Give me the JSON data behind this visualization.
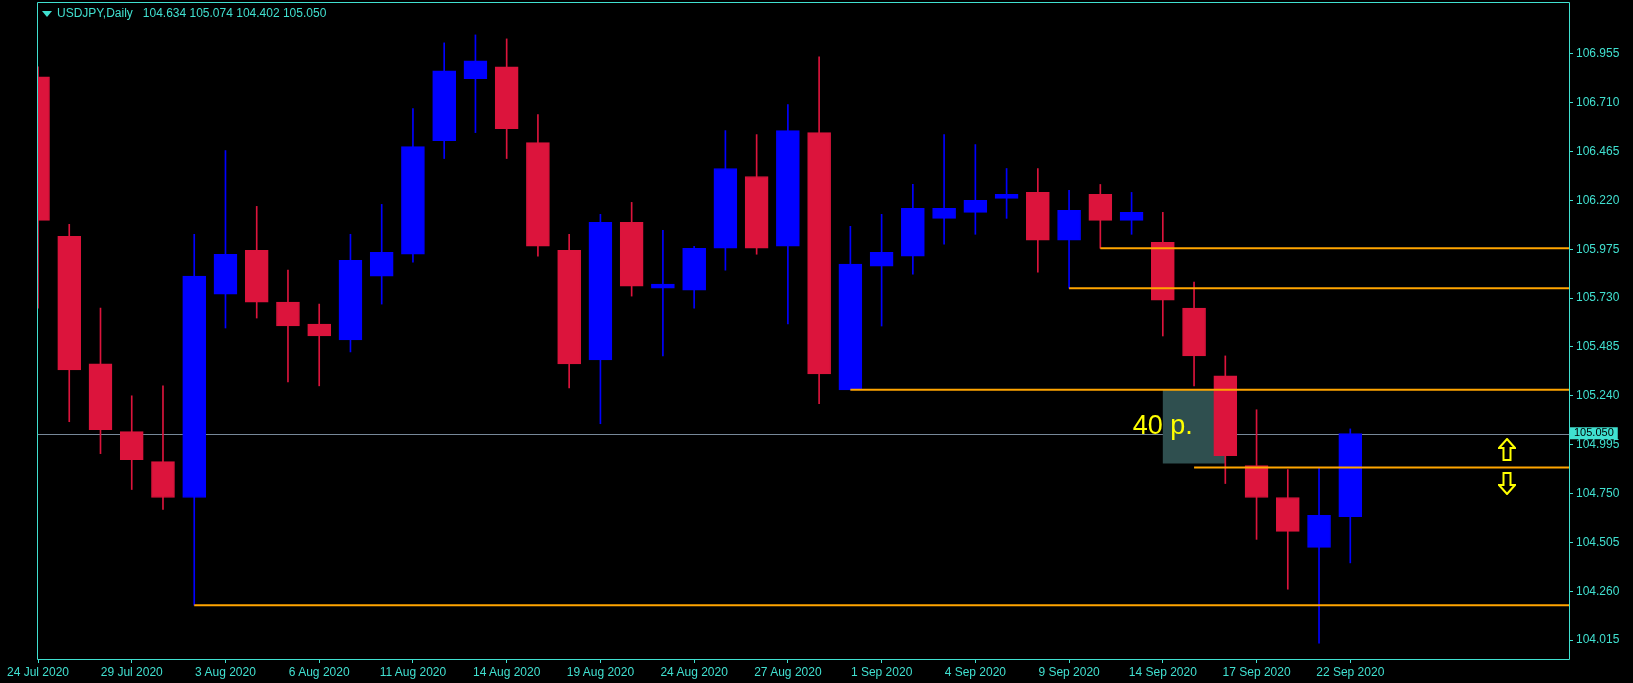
{
  "chart_data": {
    "type": "candlestick",
    "title": "USDJPY,Daily",
    "subtitle": "104.634 105.074 104.402 105.050",
    "categories": [
      "24 Jul 2020",
      null,
      null,
      "29 Jul 2020",
      null,
      null,
      "3 Aug 2020",
      null,
      null,
      "6 Aug 2020",
      null,
      null,
      "11 Aug 2020",
      null,
      null,
      "14 Aug 2020",
      null,
      null,
      "19 Aug 2020",
      null,
      null,
      "24 Aug 2020",
      null,
      null,
      "27 Aug 2020",
      null,
      null,
      "1 Sep 2020",
      null,
      null,
      "4 Sep 2020",
      null,
      null,
      "9 Sep 2020",
      null,
      null,
      "14 Sep 2020",
      null,
      null,
      "17 Sep 2020",
      null,
      null,
      "22 Sep 2020",
      null,
      null,
      null,
      null,
      null,
      null,
      null
    ],
    "series": [
      {
        "ohlc": [
          [
            106.84,
            106.89,
            105.68,
            106.12
          ],
          [
            106.04,
            106.1,
            105.11,
            105.37
          ],
          [
            105.4,
            105.68,
            104.95,
            105.07
          ],
          [
            105.06,
            105.24,
            104.77,
            104.92
          ],
          [
            104.91,
            105.29,
            104.67,
            104.73
          ],
          [
            104.73,
            106.05,
            104.19,
            105.84
          ],
          [
            105.75,
            106.47,
            105.58,
            105.95
          ],
          [
            105.97,
            106.19,
            105.63,
            105.71
          ],
          [
            105.71,
            105.87,
            105.31,
            105.59
          ],
          [
            105.6,
            105.7,
            105.29,
            105.54
          ],
          [
            105.52,
            106.05,
            105.46,
            105.92
          ],
          [
            105.84,
            106.2,
            105.7,
            105.96
          ],
          [
            105.95,
            106.68,
            105.91,
            106.49
          ],
          [
            106.52,
            107.01,
            106.43,
            106.87
          ],
          [
            106.83,
            107.05,
            106.56,
            106.92
          ],
          [
            106.89,
            107.03,
            106.43,
            106.58
          ],
          [
            106.51,
            106.65,
            105.94,
            105.99
          ],
          [
            105.97,
            106.05,
            105.28,
            105.4
          ],
          [
            105.42,
            106.15,
            105.1,
            106.11
          ],
          [
            106.11,
            106.21,
            105.74,
            105.79
          ],
          [
            105.78,
            106.07,
            105.44,
            105.8
          ],
          [
            105.77,
            105.99,
            105.68,
            105.98
          ],
          [
            105.98,
            106.57,
            105.87,
            106.38
          ],
          [
            106.34,
            106.55,
            105.95,
            105.98
          ],
          [
            105.99,
            106.7,
            105.6,
            106.57
          ],
          [
            106.56,
            106.94,
            105.2,
            105.35
          ],
          [
            105.27,
            106.09,
            105.27,
            105.9
          ],
          [
            105.89,
            106.15,
            105.59,
            105.96
          ],
          [
            105.94,
            106.3,
            105.85,
            106.18
          ],
          [
            106.13,
            106.55,
            106.0,
            106.18
          ],
          [
            106.16,
            106.5,
            106.05,
            106.22
          ],
          [
            106.23,
            106.38,
            106.13,
            106.25
          ],
          [
            106.26,
            106.38,
            105.86,
            106.02
          ],
          [
            106.02,
            106.27,
            105.78,
            106.17
          ],
          [
            106.25,
            106.3,
            105.98,
            106.12
          ],
          [
            106.12,
            106.26,
            106.05,
            106.16
          ],
          [
            106.01,
            106.16,
            105.54,
            105.72
          ],
          [
            105.68,
            105.81,
            105.29,
            105.44
          ],
          [
            105.34,
            105.44,
            104.8,
            104.94
          ],
          [
            104.89,
            105.17,
            104.52,
            104.73
          ],
          [
            104.73,
            104.87,
            104.27,
            104.56
          ],
          [
            104.48,
            104.88,
            104.0,
            104.64
          ],
          [
            104.634,
            105.074,
            104.402,
            105.05
          ],
          null,
          null,
          null,
          null,
          null,
          null,
          null
        ],
        "colors": [
          "#dc143c",
          "#dc143c",
          "#dc143c",
          "#dc143c",
          "#dc143c",
          "#0000ff",
          "#0000ff",
          "#dc143c",
          "#dc143c",
          "#dc143c",
          "#0000ff",
          "#0000ff",
          "#0000ff",
          "#0000ff",
          "#0000ff",
          "#dc143c",
          "#dc143c",
          "#dc143c",
          "#0000ff",
          "#dc143c",
          "#0000ff",
          "#0000ff",
          "#0000ff",
          "#dc143c",
          "#0000ff",
          "#dc143c",
          "#0000ff",
          "#0000ff",
          "#0000ff",
          "#0000ff",
          "#0000ff",
          "#0000ff",
          "#dc143c",
          "#0000ff",
          "#dc143c",
          "#0000ff",
          "#dc143c",
          "#dc143c",
          "#dc143c",
          "#dc143c",
          "#dc143c",
          "#0000ff",
          "#0000ff",
          null,
          null,
          null,
          null,
          null,
          null,
          null
        ]
      },
      {
        "type": "line",
        "color": "#ffa500",
        "values": [
          null,
          null,
          null,
          null,
          null,
          104.19,
          104.19,
          104.19,
          104.19,
          104.19,
          104.19,
          104.19,
          104.19,
          104.19,
          104.19,
          104.19,
          104.19,
          104.19,
          104.19,
          104.19,
          104.19,
          104.19,
          104.19,
          104.19,
          104.19,
          104.19,
          104.19,
          104.19,
          104.19,
          104.19,
          104.19,
          104.19,
          104.19,
          104.19,
          104.19,
          104.19,
          104.19,
          104.19,
          104.19,
          104.19,
          104.19,
          104.19,
          104.19,
          104.19,
          104.19,
          104.19,
          104.19,
          104.19,
          104.19,
          104.19
        ]
      },
      {
        "type": "line",
        "color": "#ffa500",
        "values": [
          null,
          null,
          null,
          null,
          null,
          null,
          null,
          null,
          null,
          null,
          null,
          null,
          null,
          null,
          null,
          null,
          null,
          null,
          null,
          null,
          null,
          null,
          null,
          null,
          null,
          null,
          105.27,
          105.27,
          105.27,
          105.27,
          105.27,
          105.27,
          105.27,
          105.27,
          105.27,
          105.27,
          105.27,
          105.27,
          105.27,
          105.27,
          105.27,
          105.27,
          105.27,
          105.27,
          105.27,
          105.27,
          105.27,
          105.27,
          105.27,
          105.27
        ]
      },
      {
        "type": "line",
        "color": "#ffa500",
        "values": [
          null,
          null,
          null,
          null,
          null,
          null,
          null,
          null,
          null,
          null,
          null,
          null,
          null,
          null,
          null,
          null,
          null,
          null,
          null,
          null,
          null,
          null,
          null,
          null,
          null,
          null,
          null,
          null,
          null,
          null,
          null,
          null,
          null,
          105.78,
          105.78,
          105.78,
          105.78,
          105.78,
          105.78,
          105.78,
          105.78,
          105.78,
          105.78,
          105.78,
          105.78,
          105.78,
          105.78,
          105.78,
          105.78,
          105.78
        ]
      },
      {
        "type": "line",
        "color": "#ffa500",
        "values": [
          null,
          null,
          null,
          null,
          null,
          null,
          null,
          null,
          null,
          null,
          null,
          null,
          null,
          null,
          null,
          null,
          null,
          null,
          null,
          null,
          null,
          null,
          null,
          null,
          null,
          null,
          null,
          null,
          null,
          null,
          null,
          null,
          null,
          null,
          105.98,
          105.98,
          105.98,
          105.98,
          105.98,
          105.98,
          105.98,
          105.98,
          105.98,
          105.98,
          105.98,
          105.98,
          105.98,
          105.98,
          105.98,
          105.98
        ]
      },
      {
        "type": "line",
        "color": "#ffa500",
        "values": [
          null,
          null,
          null,
          null,
          null,
          null,
          null,
          null,
          null,
          null,
          null,
          null,
          null,
          null,
          null,
          null,
          null,
          null,
          null,
          null,
          null,
          null,
          null,
          null,
          null,
          null,
          null,
          null,
          null,
          null,
          null,
          null,
          null,
          null,
          null,
          null,
          null,
          104.88,
          104.88,
          104.88,
          104.88,
          104.88,
          104.88,
          104.88,
          104.88,
          104.88,
          104.88,
          104.88,
          104.88,
          104.88
        ]
      },
      {
        "type": "bar",
        "name": "40 p.",
        "color": "#2f4f4f",
        "values": [
          null,
          null,
          null,
          null,
          null,
          null,
          null,
          null,
          null,
          null,
          null,
          null,
          null,
          null,
          null,
          null,
          null,
          null,
          null,
          null,
          null,
          null,
          null,
          null,
          null,
          null,
          null,
          null,
          null,
          null,
          null,
          null,
          null,
          null,
          null,
          null,
          null,
          0.37,
          null,
          null,
          null,
          null,
          null,
          null,
          null,
          null,
          null,
          null,
          null,
          null
        ],
        "base": [
          null,
          null,
          null,
          null,
          null,
          null,
          null,
          null,
          null,
          null,
          null,
          null,
          null,
          null,
          null,
          null,
          null,
          null,
          null,
          null,
          null,
          null,
          null,
          null,
          null,
          null,
          null,
          null,
          null,
          null,
          null,
          null,
          null,
          null,
          null,
          null,
          null,
          104.9,
          null,
          null,
          null,
          null,
          null,
          null,
          null,
          null,
          null,
          null,
          null,
          null
        ]
      }
    ],
    "ylim": [
      103.92,
      107.21
    ],
    "yticks": [
      104.015,
      {
        "value": 104.26,
        "label": "104.260"
      },
      104.505,
      {
        "value": 104.75,
        "label": "104.750"
      },
      104.995,
      {
        "value": 105.24,
        "label": "105.240"
      },
      105.485,
      {
        "value": 105.73,
        "label": "105.730"
      },
      105.975,
      {
        "value": 106.22,
        "label": "106.220"
      },
      106.465,
      {
        "value": 106.71,
        "label": "106.710"
      },
      106.955
    ],
    "ref_lines": [
      {
        "axis": "y",
        "value": 105.05,
        "label": "105.050",
        "color": "#778899"
      }
    ]
  }
}
